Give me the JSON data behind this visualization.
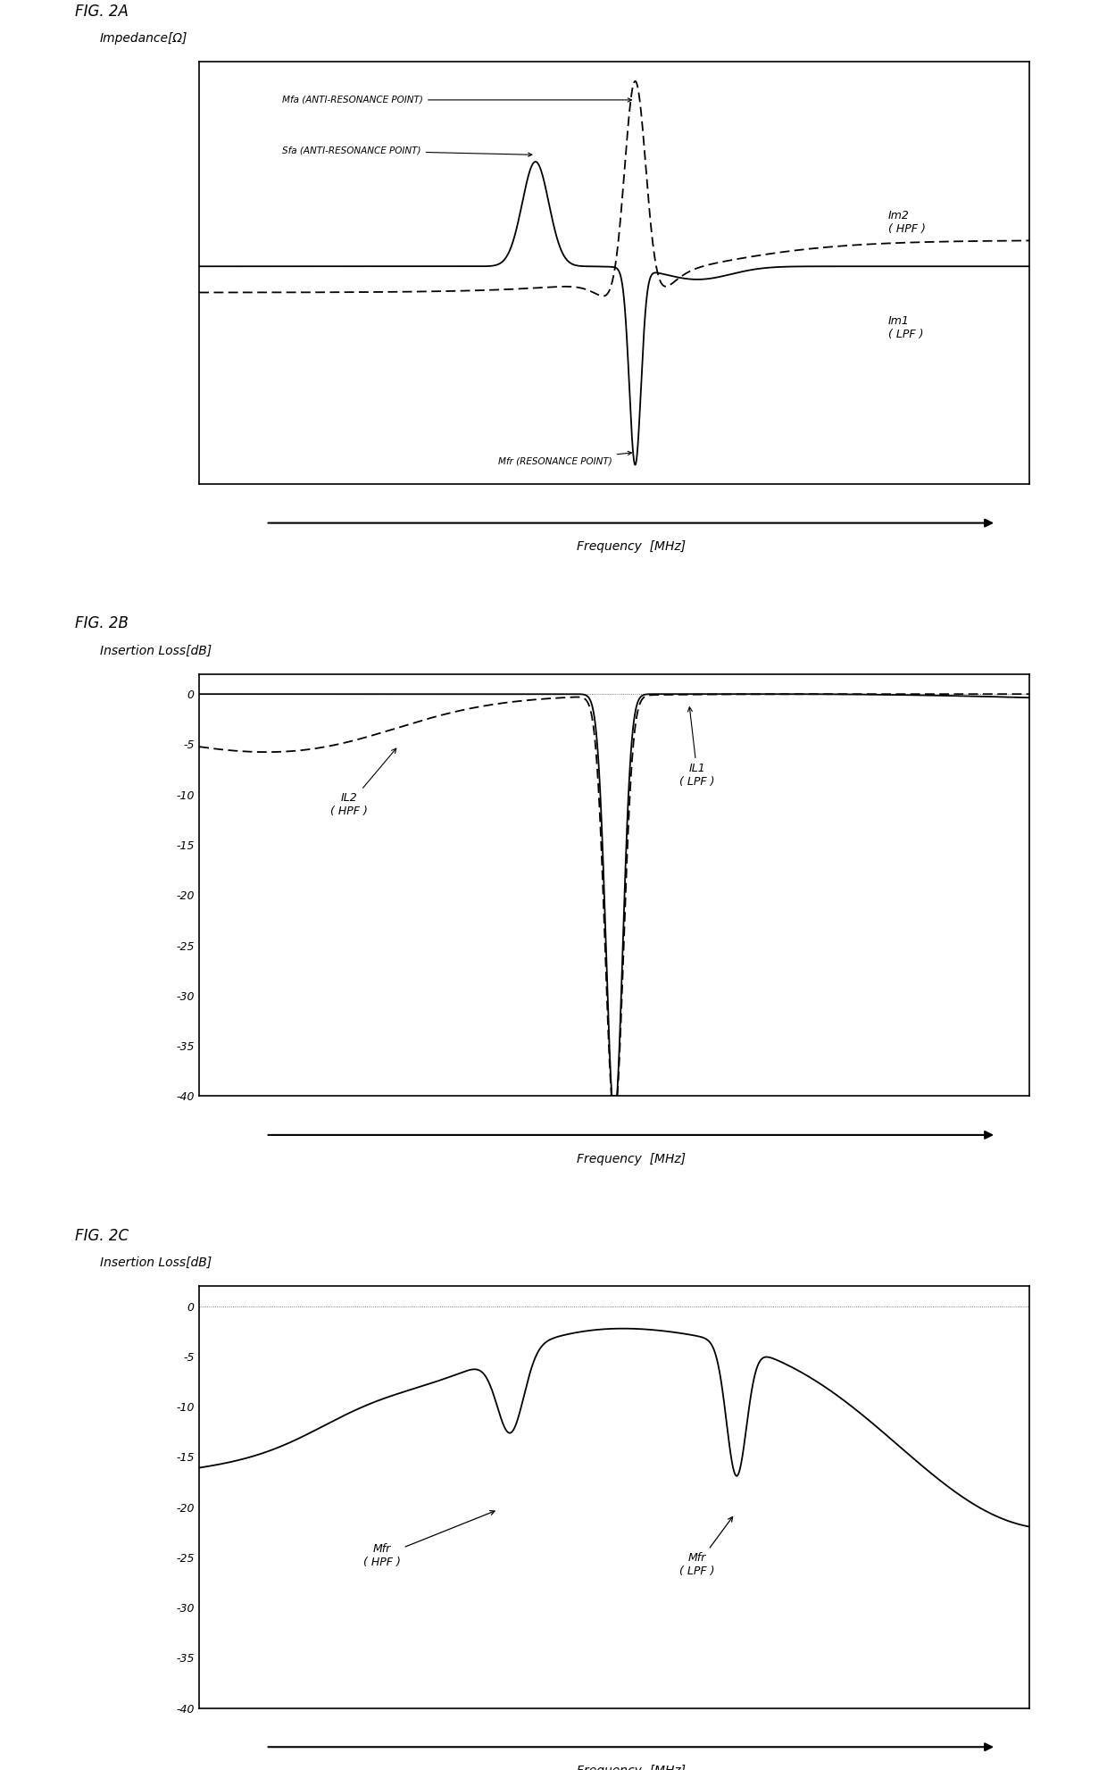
{
  "fig_labels": [
    "FIG. 2A",
    "FIG. 2B",
    "FIG. 2C"
  ],
  "fig2a": {
    "ylabel": "Impedance[Ω]",
    "xlabel": "Frequency  [MHz]"
  },
  "fig2b": {
    "ylabel": "Insertion Loss[dB]",
    "xlabel": "Frequency  [MHz]",
    "yticks": [
      0,
      -5,
      -10,
      -15,
      -20,
      -25,
      -30,
      -35,
      -40
    ],
    "ylim": [
      -40,
      2
    ]
  },
  "fig2c": {
    "ylabel": "Insertion Loss[dB]",
    "xlabel": "Frequency  [MHz]",
    "yticks": [
      0,
      -5,
      -10,
      -15,
      -20,
      -25,
      -30,
      -35,
      -40
    ],
    "ylim": [
      -40,
      2
    ]
  },
  "background_color": "#ffffff",
  "line_color": "#000000"
}
